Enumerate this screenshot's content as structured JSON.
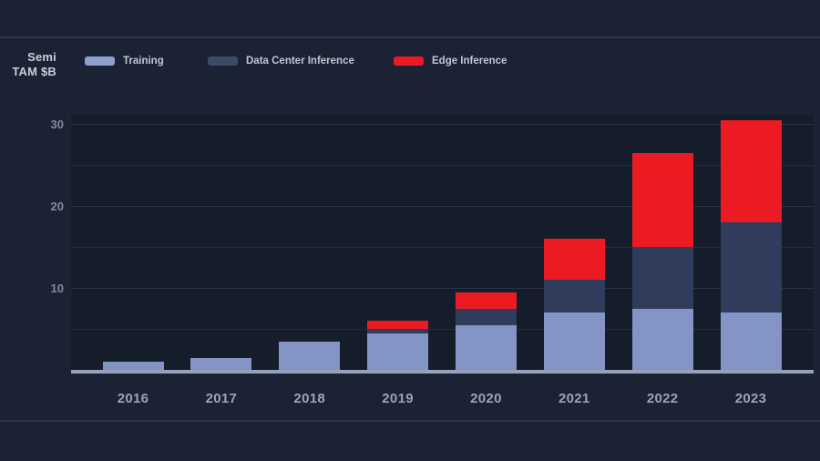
{
  "header": {
    "y_axis_title_line1": "Semi",
    "y_axis_title_line2": "TAM $B"
  },
  "legend": [
    {
      "label": "Training",
      "color": "#8fa0ce"
    },
    {
      "label": "Data Center Inference",
      "color": "#3c4967"
    },
    {
      "label": "Edge Inference",
      "color": "#ec1b23"
    }
  ],
  "chart_data": {
    "type": "bar",
    "stacked": true,
    "title": "Semi TAM $B",
    "categories": [
      "2016",
      "2017",
      "2018",
      "2019",
      "2020",
      "2021",
      "2022",
      "2023"
    ],
    "series": [
      {
        "name": "Training",
        "color": "#8394c5",
        "values": [
          1,
          1.5,
          3.5,
          4.5,
          5.5,
          7,
          7.5,
          7
        ]
      },
      {
        "name": "Data Center Inference",
        "color": "#303c5b",
        "values": [
          0,
          0,
          0,
          0.5,
          2,
          4,
          7.5,
          11
        ]
      },
      {
        "name": "Edge Inference",
        "color": "#ec1b23",
        "values": [
          0,
          0,
          0,
          1,
          2,
          5,
          11.5,
          12.5
        ]
      }
    ],
    "totals": [
      1,
      1.5,
      3.5,
      6,
      9.5,
      16,
      26.5,
      30.5
    ],
    "xlabel": "",
    "ylabel": "Semi TAM $B",
    "y_ticks": [
      10,
      20,
      30
    ],
    "gridline_values": [
      5,
      10,
      15,
      20,
      25,
      30
    ],
    "ylim": [
      0,
      31
    ],
    "grid": true,
    "legend_position": "top"
  },
  "colors": {
    "page_background": "#1b2233",
    "plot_background": "#151c2a",
    "gridline": "#242e42",
    "axis_line": "#97a1b7",
    "x_tick_label": "#9aa3b8",
    "y_tick_label": "#828ba0",
    "legend_text": "#c0c6d4",
    "axis_title_text": "#c9cedc"
  }
}
